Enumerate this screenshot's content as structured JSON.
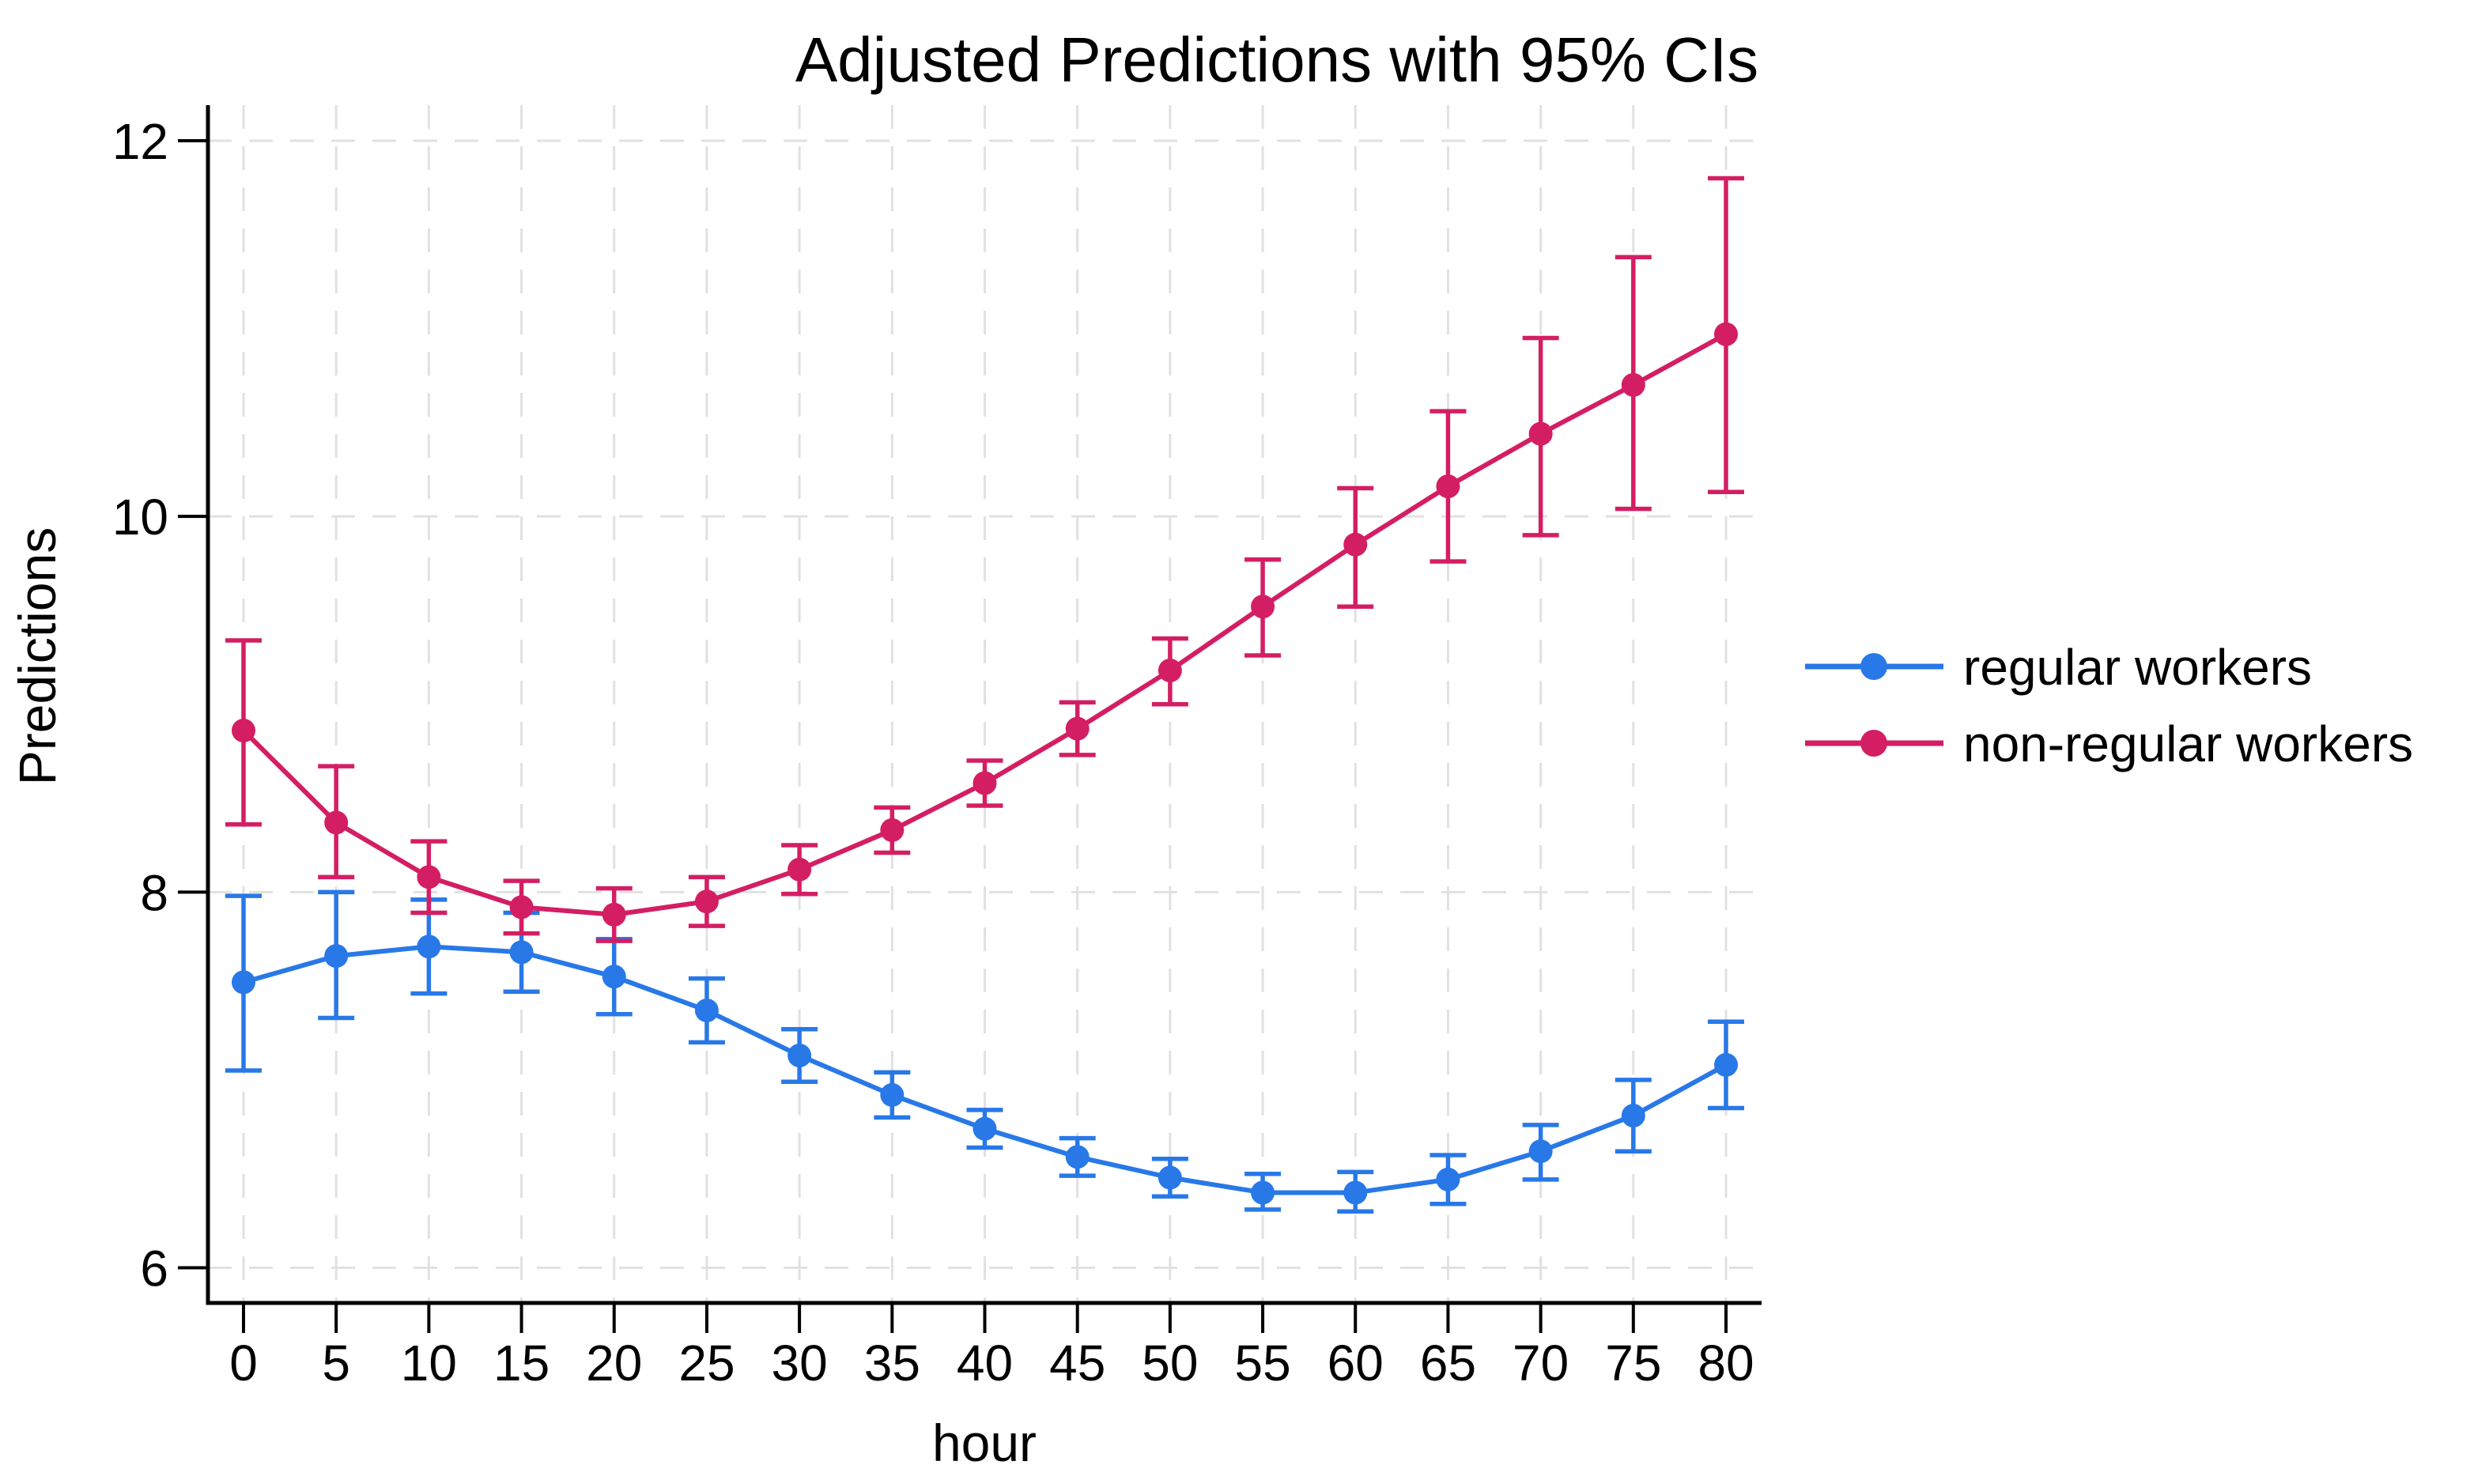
{
  "chart_data": {
    "type": "line",
    "title": "Adjusted Predictions with 95% CIs",
    "xlabel": "hour",
    "ylabel": "Predictions",
    "x_ticks": [
      0,
      5,
      10,
      15,
      20,
      25,
      30,
      35,
      40,
      45,
      50,
      55,
      60,
      65,
      70,
      75,
      80
    ],
    "y_ticks": [
      6,
      8,
      10,
      12
    ],
    "xlim": [
      -2,
      82
    ],
    "ylim": [
      5.8,
      12.2
    ],
    "grid": "dashed light gray at every x tick and every labeled y tick",
    "legend_position": "right of plot, no border",
    "error_bars": "95% confidence intervals with flat caps",
    "x": [
      0,
      5,
      10,
      15,
      20,
      25,
      30,
      35,
      40,
      45,
      50,
      55,
      60,
      65,
      70,
      75,
      80
    ],
    "series": [
      {
        "name": "regular workers",
        "color": "#2878E8",
        "values": [
          7.52,
          7.66,
          7.71,
          7.68,
          7.55,
          7.37,
          7.13,
          6.92,
          6.74,
          6.59,
          6.48,
          6.4,
          6.4,
          6.47,
          6.62,
          6.81,
          7.08
        ],
        "ci_low": [
          7.05,
          7.33,
          7.46,
          7.47,
          7.35,
          7.2,
          6.99,
          6.8,
          6.64,
          6.49,
          6.38,
          6.31,
          6.3,
          6.34,
          6.47,
          6.62,
          6.85
        ],
        "ci_high": [
          7.98,
          8.0,
          7.96,
          7.89,
          7.75,
          7.54,
          7.27,
          7.04,
          6.84,
          6.69,
          6.58,
          6.5,
          6.51,
          6.6,
          6.76,
          7.0,
          7.31
        ]
      },
      {
        "name": "non-regular workers",
        "color": "#D41E63",
        "values": [
          8.86,
          8.37,
          8.08,
          7.92,
          7.88,
          7.95,
          8.12,
          8.33,
          8.58,
          8.87,
          9.18,
          9.52,
          9.85,
          10.16,
          10.44,
          10.7,
          10.97
        ],
        "ci_low": [
          8.36,
          8.08,
          7.89,
          7.78,
          7.74,
          7.82,
          7.99,
          8.21,
          8.46,
          8.73,
          9.0,
          9.26,
          9.52,
          9.76,
          9.9,
          10.04,
          10.13
        ],
        "ci_high": [
          9.34,
          8.67,
          8.27,
          8.06,
          8.02,
          8.08,
          8.25,
          8.45,
          8.7,
          9.01,
          9.35,
          9.77,
          10.15,
          10.56,
          10.95,
          11.38,
          11.8
        ]
      }
    ],
    "colors": {
      "regular": "#2878E8",
      "non_regular": "#D41E63",
      "gridline": "#e1e1e1",
      "axis": "#000000"
    }
  }
}
